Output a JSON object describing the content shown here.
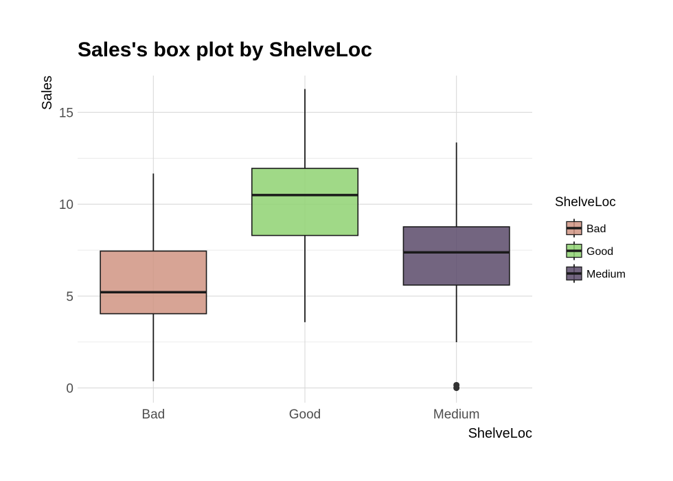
{
  "chart_data": {
    "type": "boxplot",
    "title": "Sales's box plot by ShelveLoc",
    "xlabel": "ShelveLoc",
    "ylabel": "Sales",
    "ylim": [
      -0.8,
      17.0
    ],
    "yticks": [
      0,
      5,
      10,
      15
    ],
    "grid": true,
    "legend": {
      "title": "ShelveLoc",
      "position": "right"
    },
    "categories": [
      "Bad",
      "Good",
      "Medium"
    ],
    "series": [
      {
        "name": "Bad",
        "color": "#d09482",
        "min": 0.37,
        "q1": 4.04,
        "median": 5.21,
        "q3": 7.45,
        "max": 11.67,
        "outliers": []
      },
      {
        "name": "Good",
        "color": "#8fd272",
        "min": 3.58,
        "q1": 8.3,
        "median": 10.5,
        "q3": 11.95,
        "max": 16.27,
        "outliers": []
      },
      {
        "name": "Medium",
        "color": "#5a4a6a",
        "min": 2.49,
        "q1": 5.6,
        "median": 7.38,
        "q3": 8.77,
        "max": 13.36,
        "outliers": [
          0,
          0.16
        ]
      }
    ]
  }
}
